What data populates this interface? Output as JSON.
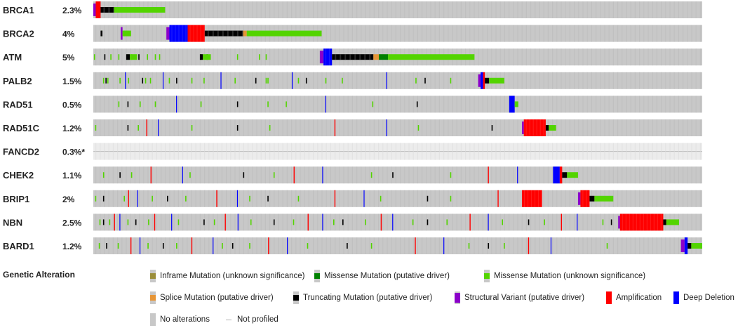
{
  "chart_data": {
    "type": "oncoprint",
    "num_samples": 1000,
    "genes": [
      {
        "name": "BRCA1",
        "freq": "2.3%"
      },
      {
        "name": "BRCA2",
        "freq": "4%"
      },
      {
        "name": "ATM",
        "freq": "5%"
      },
      {
        "name": "PALB2",
        "freq": "1.5%"
      },
      {
        "name": "RAD51",
        "freq": "0.5%"
      },
      {
        "name": "RAD51C",
        "freq": "1.2%"
      },
      {
        "name": "FANCD2",
        "freq": "0.3%*",
        "not_profiled": true
      },
      {
        "name": "CHEK2",
        "freq": "1.1%"
      },
      {
        "name": "BRIP1",
        "freq": "2%"
      },
      {
        "name": "NBN",
        "freq": "2.5%"
      },
      {
        "name": "BARD1",
        "freq": "1.2%"
      }
    ],
    "alteration_blocks": [
      {
        "gene": 0,
        "start": 0.0,
        "end": 0.004,
        "type": "structural_variant"
      },
      {
        "gene": 0,
        "start": 0.004,
        "end": 0.012,
        "type": "amplification"
      },
      {
        "gene": 0,
        "start": 0.012,
        "end": 0.034,
        "type": "truncating"
      },
      {
        "gene": 0,
        "start": 0.034,
        "end": 0.118,
        "type": "missense_unknown"
      },
      {
        "gene": 1,
        "start": 0.012,
        "end": 0.015,
        "type": "truncating"
      },
      {
        "gene": 1,
        "start": 0.045,
        "end": 0.048,
        "type": "structural_variant"
      },
      {
        "gene": 1,
        "start": 0.048,
        "end": 0.062,
        "type": "missense_unknown"
      },
      {
        "gene": 1,
        "start": 0.12,
        "end": 0.125,
        "type": "structural_variant"
      },
      {
        "gene": 1,
        "start": 0.125,
        "end": 0.155,
        "type": "deep_deletion"
      },
      {
        "gene": 1,
        "start": 0.155,
        "end": 0.183,
        "type": "amplification"
      },
      {
        "gene": 1,
        "start": 0.183,
        "end": 0.246,
        "type": "truncating"
      },
      {
        "gene": 1,
        "start": 0.246,
        "end": 0.252,
        "type": "splice"
      },
      {
        "gene": 1,
        "start": 0.252,
        "end": 0.375,
        "type": "missense_unknown"
      },
      {
        "gene": 2,
        "start": 0.054,
        "end": 0.06,
        "type": "truncating"
      },
      {
        "gene": 2,
        "start": 0.06,
        "end": 0.072,
        "type": "missense_unknown"
      },
      {
        "gene": 2,
        "start": 0.175,
        "end": 0.18,
        "type": "truncating"
      },
      {
        "gene": 2,
        "start": 0.18,
        "end": 0.193,
        "type": "missense_unknown"
      },
      {
        "gene": 2,
        "start": 0.372,
        "end": 0.378,
        "type": "structural_variant"
      },
      {
        "gene": 2,
        "start": 0.378,
        "end": 0.392,
        "type": "deep_deletion"
      },
      {
        "gene": 2,
        "start": 0.392,
        "end": 0.46,
        "type": "truncating"
      },
      {
        "gene": 2,
        "start": 0.46,
        "end": 0.469,
        "type": "splice"
      },
      {
        "gene": 2,
        "start": 0.469,
        "end": 0.484,
        "type": "missense_driver"
      },
      {
        "gene": 2,
        "start": 0.484,
        "end": 0.626,
        "type": "missense_unknown"
      },
      {
        "gene": 3,
        "start": 0.632,
        "end": 0.636,
        "type": "structural_variant"
      },
      {
        "gene": 3,
        "start": 0.636,
        "end": 0.64,
        "type": "deep_deletion"
      },
      {
        "gene": 3,
        "start": 0.64,
        "end": 0.643,
        "type": "amplification"
      },
      {
        "gene": 3,
        "start": 0.643,
        "end": 0.65,
        "type": "truncating"
      },
      {
        "gene": 3,
        "start": 0.65,
        "end": 0.675,
        "type": "missense_unknown"
      },
      {
        "gene": 4,
        "start": 0.683,
        "end": 0.692,
        "type": "deep_deletion"
      },
      {
        "gene": 4,
        "start": 0.692,
        "end": 0.698,
        "type": "missense_unknown"
      },
      {
        "gene": 5,
        "start": 0.704,
        "end": 0.707,
        "type": "structural_variant"
      },
      {
        "gene": 5,
        "start": 0.707,
        "end": 0.743,
        "type": "amplification"
      },
      {
        "gene": 5,
        "start": 0.743,
        "end": 0.748,
        "type": "truncating"
      },
      {
        "gene": 5,
        "start": 0.748,
        "end": 0.76,
        "type": "missense_unknown"
      },
      {
        "gene": 7,
        "start": 0.755,
        "end": 0.766,
        "type": "deep_deletion"
      },
      {
        "gene": 7,
        "start": 0.766,
        "end": 0.77,
        "type": "amplification"
      },
      {
        "gene": 7,
        "start": 0.77,
        "end": 0.778,
        "type": "truncating"
      },
      {
        "gene": 7,
        "start": 0.778,
        "end": 0.796,
        "type": "missense_unknown"
      },
      {
        "gene": 8,
        "start": 0.704,
        "end": 0.737,
        "type": "amplification"
      },
      {
        "gene": 8,
        "start": 0.796,
        "end": 0.8,
        "type": "structural_variant"
      },
      {
        "gene": 8,
        "start": 0.8,
        "end": 0.815,
        "type": "amplification"
      },
      {
        "gene": 8,
        "start": 0.815,
        "end": 0.823,
        "type": "truncating"
      },
      {
        "gene": 8,
        "start": 0.823,
        "end": 0.854,
        "type": "missense_unknown"
      },
      {
        "gene": 9,
        "start": 0.862,
        "end": 0.865,
        "type": "structural_variant"
      },
      {
        "gene": 9,
        "start": 0.865,
        "end": 0.936,
        "type": "amplification"
      },
      {
        "gene": 9,
        "start": 0.936,
        "end": 0.941,
        "type": "truncating"
      },
      {
        "gene": 9,
        "start": 0.941,
        "end": 0.962,
        "type": "missense_unknown"
      },
      {
        "gene": 10,
        "start": 0.965,
        "end": 0.971,
        "type": "structural_variant"
      },
      {
        "gene": 10,
        "start": 0.971,
        "end": 0.976,
        "type": "deep_deletion"
      },
      {
        "gene": 10,
        "start": 0.976,
        "end": 0.982,
        "type": "truncating"
      },
      {
        "gene": 10,
        "start": 0.982,
        "end": 1.0,
        "type": "missense_unknown"
      }
    ],
    "scattered_events": [
      {
        "gene": 0,
        "positions": [
          0.0,
          0.002,
          0.004
        ]
      },
      {
        "gene": 1,
        "positions": [
          0.013,
          0.046,
          0.05,
          0.053,
          0.056
        ]
      },
      {
        "gene": 2,
        "positions": [
          0.001,
          0.018,
          0.028,
          0.041,
          0.056,
          0.062,
          0.074,
          0.088,
          0.101,
          0.108,
          0.176,
          0.186,
          0.236,
          0.272,
          0.283
        ]
      },
      {
        "gene": 3,
        "positions": [
          0.016,
          0.02,
          0.023,
          0.043,
          0.052,
          0.057,
          0.08,
          0.085,
          0.093,
          0.114,
          0.124,
          0.136,
          0.161,
          0.181,
          0.209,
          0.232,
          0.266,
          0.283,
          0.286,
          0.326,
          0.336,
          0.349,
          0.381,
          0.408,
          0.481,
          0.529,
          0.544,
          0.586
        ]
      },
      {
        "gene": 4,
        "positions": [
          0.041,
          0.056,
          0.076,
          0.101,
          0.136,
          0.176,
          0.236,
          0.286,
          0.316,
          0.381,
          0.458,
          0.531
        ]
      },
      {
        "gene": 5,
        "positions": [
          0.003,
          0.056,
          0.073,
          0.087,
          0.106,
          0.161,
          0.236,
          0.289,
          0.396,
          0.481,
          0.533,
          0.654
        ]
      },
      {
        "gene": 7,
        "positions": [
          0.016,
          0.043,
          0.062,
          0.094,
          0.146,
          0.158,
          0.246,
          0.296,
          0.329,
          0.376,
          0.456,
          0.491,
          0.586,
          0.648,
          0.696
        ]
      },
      {
        "gene": 8,
        "positions": [
          0.003,
          0.016,
          0.05,
          0.057,
          0.072,
          0.096,
          0.121,
          0.151,
          0.202,
          0.236,
          0.256,
          0.286,
          0.336,
          0.396,
          0.444,
          0.471,
          0.548,
          0.586,
          0.664
        ]
      },
      {
        "gene": 9,
        "positions": [
          0.01,
          0.016,
          0.026,
          0.034,
          0.043,
          0.056,
          0.069,
          0.09,
          0.1,
          0.128,
          0.139,
          0.181,
          0.198,
          0.216,
          0.237,
          0.258,
          0.296,
          0.328,
          0.352,
          0.376,
          0.394,
          0.409,
          0.446,
          0.472,
          0.491,
          0.524,
          0.548,
          0.58,
          0.618,
          0.648,
          0.671,
          0.714,
          0.74,
          0.768,
          0.794,
          0.836,
          0.85
        ]
      },
      {
        "gene": 10,
        "positions": [
          0.009,
          0.021,
          0.04,
          0.061,
          0.076,
          0.089,
          0.114,
          0.136,
          0.161,
          0.196,
          0.211,
          0.228,
          0.256,
          0.287,
          0.318,
          0.351,
          0.416,
          0.456,
          0.528,
          0.575,
          0.616,
          0.648,
          0.674,
          0.714,
          0.751,
          0.843
        ]
      }
    ],
    "colors": {
      "inframe": "#9b8e3a",
      "missense_driver": "#008000",
      "missense_unknown": "#53d400",
      "splice": "#e69537",
      "truncating": "#000000",
      "structural_variant": "#8b00c9",
      "amplification": "#ff0000",
      "deep_deletion": "#0000ff",
      "no_alteration": "#c8c8c8",
      "stripe": "#b9b9b9",
      "not_profiled": "#ececec"
    }
  },
  "legend": {
    "title": "Genetic Alteration",
    "items": [
      {
        "label": "Inframe Mutation (unknown significance)",
        "type": "inframe"
      },
      {
        "label": "Missense Mutation (putative driver)",
        "type": "missense_driver"
      },
      {
        "label": "Missense Mutation (unknown significance)",
        "type": "missense_unknown"
      },
      {
        "label": "Splice Mutation (putative driver)",
        "type": "splice"
      },
      {
        "label": "Truncating Mutation (putative driver)",
        "type": "truncating"
      },
      {
        "label": "Structural Variant (putative driver)",
        "type": "structural_variant"
      },
      {
        "label": "Amplification",
        "type": "amplification"
      },
      {
        "label": "Deep Deletion",
        "type": "deep_deletion"
      },
      {
        "label": "No alterations",
        "type": "no_alteration"
      },
      {
        "label": "Not profiled",
        "type": "not_profiled"
      }
    ]
  }
}
